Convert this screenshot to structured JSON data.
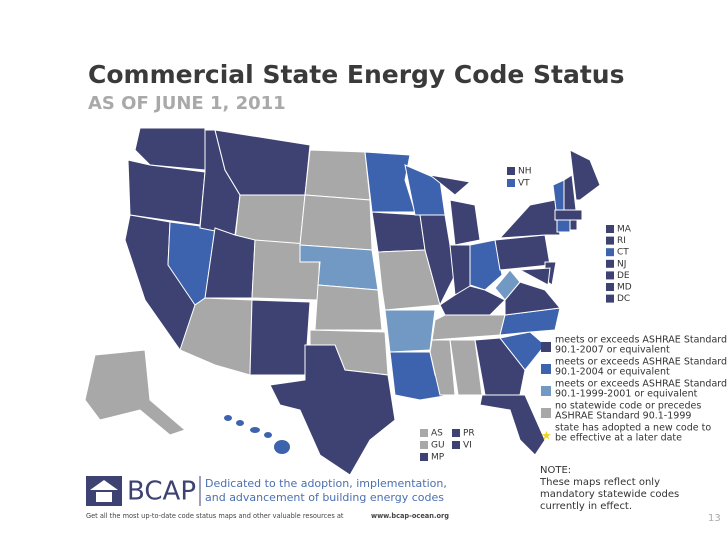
{
  "header": {
    "title": "Commercial State Energy Code Status",
    "subtitle": "AS OF JUNE 1, 2011"
  },
  "small_states_top": [
    "NH",
    "VT"
  ],
  "small_states_east": [
    "MA",
    "RI",
    "CT",
    "NJ",
    "DE",
    "MD",
    "DC"
  ],
  "legend": [
    {
      "lines": [
        "meets or exceeds ASHRAE Standard",
        "90.1-2007 or equivalent"
      ]
    },
    {
      "lines": [
        "meets or exceeds ASHRAE Standard",
        "90.1-2004 or equivalent"
      ]
    },
    {
      "lines": [
        "meets or exceeds ASHRAE Standard",
        "90.1-1999-2001 or equivalent"
      ]
    },
    {
      "lines": [
        "no statewide code or precedes",
        "ASHRAE Standard 90.1-1999"
      ]
    },
    {
      "lines": [
        "state has adopted a new code to",
        "be effective at a later date"
      ]
    }
  ],
  "territories": [
    "AS",
    "GU",
    "MP",
    "PR",
    "VI"
  ],
  "note": {
    "heading": "NOTE:",
    "lines": [
      "These maps reflect only",
      "mandatory statewide codes",
      "currently in effect."
    ]
  },
  "footer": {
    "logo": "BCAP",
    "tagline": [
      "Dedicated to the adoption, implementation,",
      "and advancement of building energy codes"
    ],
    "text": "Get all the most up-to-date code status maps and other valuable resources at",
    "url": "www.bcap-ocean.org"
  },
  "page_number": "13"
}
